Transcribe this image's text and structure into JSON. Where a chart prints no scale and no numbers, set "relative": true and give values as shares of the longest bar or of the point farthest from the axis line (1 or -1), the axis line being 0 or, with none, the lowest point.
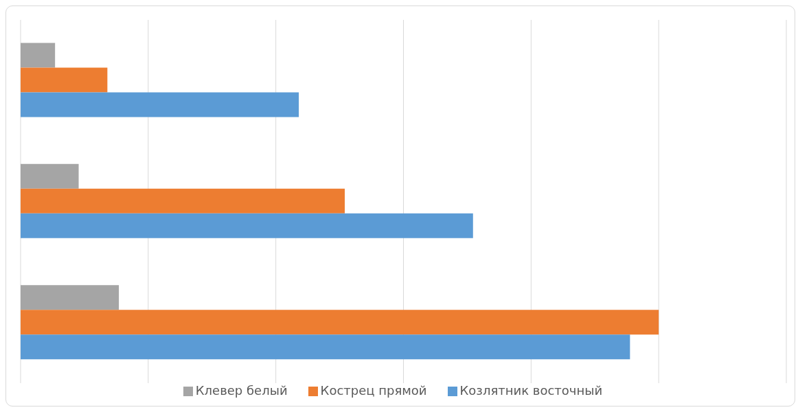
{
  "chart_data": {
    "type": "bar",
    "orientation": "horizontal",
    "relative": true,
    "categories": [
      null,
      null,
      null
    ],
    "series": [
      {
        "name": "Клевер белый",
        "color": "#a5a5a5",
        "values": [
          0.054,
          0.091,
          0.154
        ]
      },
      {
        "name": "Кострец прямой",
        "color": "#ed7d31",
        "values": [
          0.136,
          0.508,
          1
        ]
      },
      {
        "name": "Козлятник восточный",
        "color": "#5b9bd5",
        "values": [
          0.436,
          0.709,
          0.955
        ]
      }
    ],
    "grid": "x",
    "legend": "bottom"
  }
}
